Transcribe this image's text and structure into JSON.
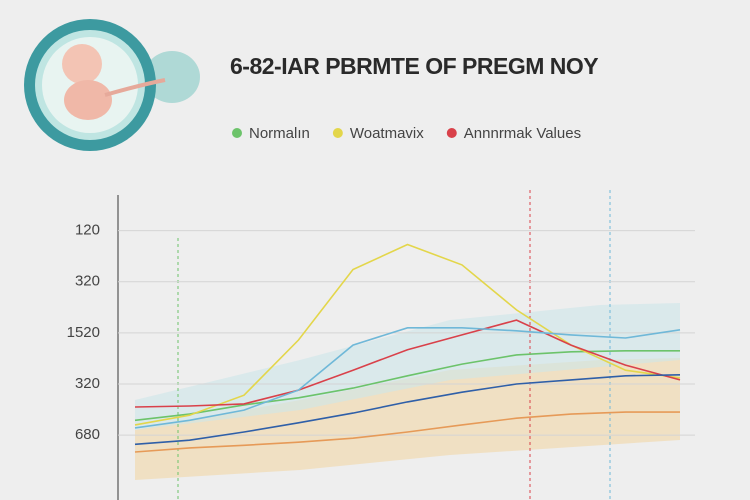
{
  "chart_data": {
    "type": "line",
    "title": "6-82-IAR PBRMTE OF PREGM NOY",
    "categories": [
      null,
      null,
      null,
      null,
      null,
      null,
      null,
      null,
      null,
      null,
      null
    ],
    "ylim": [
      -1.27,
      4.6
    ],
    "yticks": [
      {
        "value": 4,
        "label": "120"
      },
      {
        "value": 3,
        "label": "320"
      },
      {
        "value": 2,
        "label": "1520"
      },
      {
        "value": 1,
        "label": "320"
      },
      {
        "value": 0,
        "label": "680"
      }
    ],
    "grid": true,
    "series": [
      {
        "name": "Normalın",
        "color": "#6cc36a",
        "values": [
          0.29,
          0.41,
          0.59,
          0.73,
          0.92,
          1.16,
          1.39,
          1.57,
          1.63,
          1.65,
          1.65
        ]
      },
      {
        "name": "Woatmavix",
        "color": "#e3d64a",
        "values": [
          0.2,
          0.39,
          0.78,
          1.86,
          3.24,
          3.73,
          3.33,
          2.45,
          1.76,
          1.27,
          1.12
        ]
      },
      {
        "name": "Annnrmak Values",
        "color": "#d9414a",
        "values": [
          0.55,
          0.57,
          0.61,
          0.88,
          1.27,
          1.67,
          1.96,
          2.25,
          1.76,
          1.37,
          1.08
        ]
      },
      {
        "color": "#6fb8d8",
        "values": [
          0.14,
          0.29,
          0.49,
          0.88,
          1.76,
          2.1,
          2.1,
          2.04,
          1.96,
          1.9,
          2.06
        ]
      },
      {
        "color": "#2f5fa8",
        "values": [
          -0.18,
          -0.1,
          0.06,
          0.24,
          0.43,
          0.65,
          0.84,
          1.0,
          1.08,
          1.16,
          1.18
        ]
      },
      {
        "color": "#e69a58",
        "values": [
          -0.33,
          -0.25,
          -0.2,
          -0.14,
          -0.06,
          0.06,
          0.2,
          0.33,
          0.41,
          0.45,
          0.45
        ]
      }
    ]
  }
}
